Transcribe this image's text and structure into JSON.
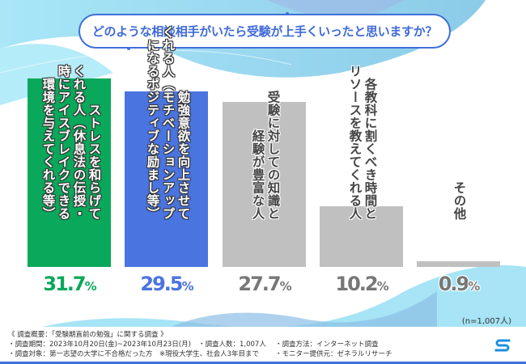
{
  "title": "どのような相談相手がいたら受験が上手くいったと思いますか？",
  "chart_data": {
    "type": "bar",
    "title": "どのような相談相手がいたら受験が上手くいったと思いますか？",
    "categories": [
      [
        "ストレスを和らげて",
        "くれる人（休息法の伝授・",
        "時にアイスブレイクできる",
        "環境を与えてくれる等）"
      ],
      [
        "勉強意欲を向上させて",
        "くれる人（モチベーションアップ",
        "になるポジティブな励まし等）"
      ],
      [
        "受験に対しての知識と",
        "経験が豊富な人"
      ],
      [
        "各教科に割くべき時間と",
        "リソースを教えてくれる人"
      ],
      [
        "その他"
      ]
    ],
    "values": [
      31.7,
      29.5,
      27.7,
      10.2,
      0.9
    ],
    "value_labels": [
      "31.7",
      "29.5",
      "27.7",
      "10.2",
      "0.9"
    ],
    "unit": "%",
    "colors": [
      "#0aa85a",
      "#4a74e0",
      "#c0c0c0",
      "#c0c0c0",
      "#c0c0c0"
    ],
    "label_colors": [
      "#0aa85a",
      "#4a74e0",
      "#777777",
      "#777777",
      "#777777"
    ],
    "ylim": [
      0,
      31.7
    ]
  },
  "sample": "(n=1,007人)",
  "footer": {
    "line1": "《 調査概要：「受験期直前の勉強」に関する調査 》",
    "period": "・調査期間：2023年10月20日(金)~2023年10月23日(月)",
    "count": "・調査人数：1,007人",
    "method": "・調査方法：インターネット調査",
    "target": "・調査対象：第一志望の大学に不合格だった方　※現役大学生、社会人3年目まで",
    "provider": "・モニター提供元：ゼネラルリサーチ"
  }
}
